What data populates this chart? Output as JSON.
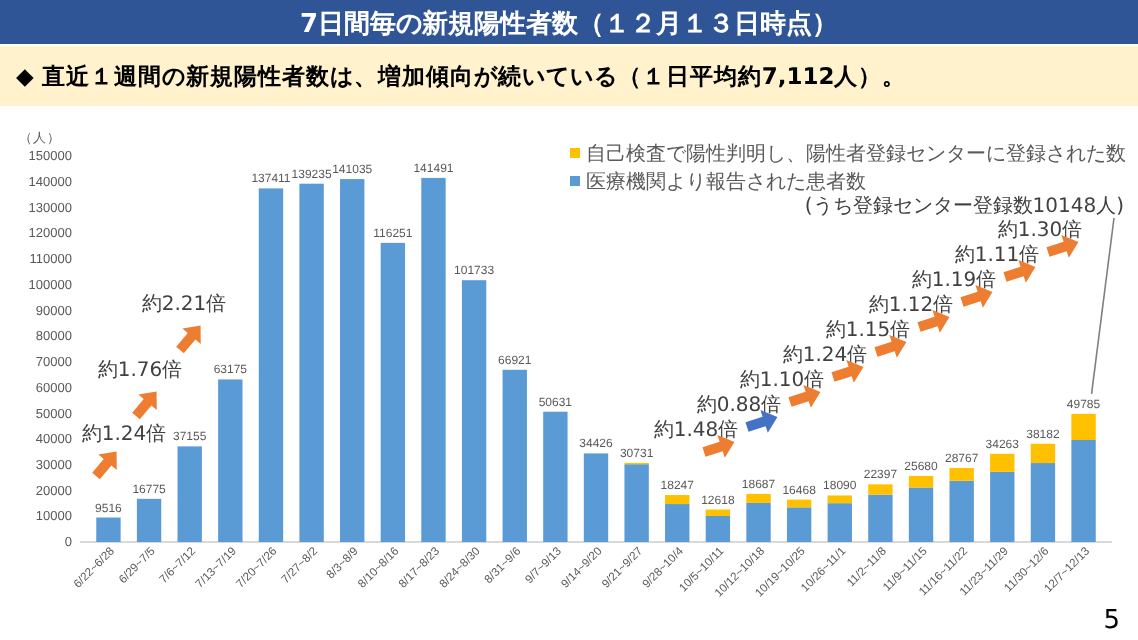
{
  "chart_data": {
    "type": "bar",
    "title": "7日間毎の新規陽性者数（１２月１３日時点）",
    "subtitle": "◆ 直近１週間の新規陽性者数は、増加傾向が続いている（１日平均約7,112人）。",
    "ylabel": "（人）",
    "categories": [
      "6/22~6/28",
      "6/29~7/5",
      "7/6~7/12",
      "7/13~7/19",
      "7/20~7/26",
      "7/27~8/2",
      "8/3~8/9",
      "8/10~8/16",
      "8/17~8/23",
      "8/24~8/30",
      "8/31~9/6",
      "9/7~9/13",
      "9/14~9/20",
      "9/21~9/27",
      "9/28~10/4",
      "10/5~10/11",
      "10/12~10/18",
      "10/19~10/25",
      "10/26~11/1",
      "11/2~11/8",
      "11/9~11/15",
      "11/16~11/22",
      "11/23~11/29",
      "11/30~12/6",
      "12/7~12/13"
    ],
    "series": [
      {
        "name": "医療機関より報告された患者数",
        "color": "#5b9bd5",
        "values": [
          9516,
          16775,
          37155,
          63175,
          137411,
          139235,
          141035,
          116251,
          141491,
          101733,
          66921,
          50631,
          34426,
          30231,
          14747,
          10118,
          15187,
          13468,
          15090,
          18397,
          21180,
          23767,
          27263,
          30682,
          39637
        ]
      },
      {
        "name": "自己検査で陽性判明し、陽性者登録センターに登録された数",
        "color": "#ffc000",
        "values": [
          0,
          0,
          0,
          0,
          0,
          0,
          0,
          0,
          0,
          0,
          0,
          0,
          0,
          500,
          3500,
          2500,
          3500,
          3000,
          3000,
          4000,
          4500,
          5000,
          7000,
          7500,
          10148
        ]
      }
    ],
    "stacked": true,
    "totals": [
      "9516",
      "16775",
      "37155",
      "63175",
      "137411",
      "139235",
      "141035",
      "116251",
      "141491",
      "101733",
      "66921",
      "50631",
      "34426",
      "30731",
      "18247",
      "12618",
      "18687",
      "16468",
      "18090",
      "22397",
      "25680",
      "28767",
      "34263",
      "38182",
      "49785"
    ],
    "ylim": [
      0,
      150000
    ],
    "yticks": [
      0,
      10000,
      20000,
      30000,
      40000,
      50000,
      60000,
      70000,
      80000,
      90000,
      100000,
      110000,
      120000,
      130000,
      140000,
      150000
    ],
    "legend": "top right",
    "annotations": [
      "約1.24倍",
      "約1.76倍",
      "約2.21倍",
      "約1.48倍",
      "約0.88倍",
      "約1.10倍",
      "約1.24倍",
      "約1.15倍",
      "約1.12倍",
      "約1.19倍",
      "約1.11倍",
      "約1.30倍",
      "(うち登録センター登録数10148人)",
      "5"
    ]
  }
}
